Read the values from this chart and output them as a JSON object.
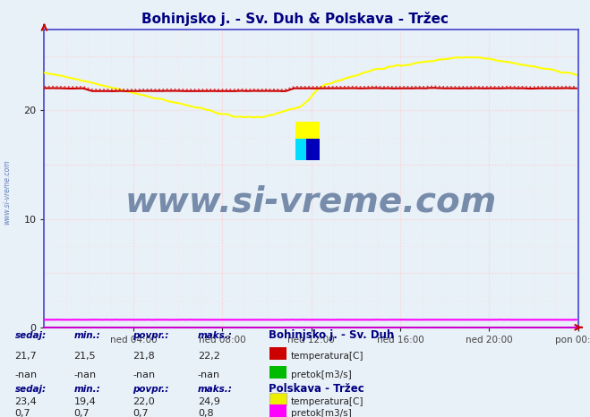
{
  "title": "Bohinjsko j. - Sv. Duh & Polskava - Tržec",
  "title_color": "#000080",
  "bg_color": "#e8f0f8",
  "plot_bg_color": "#e8f0f8",
  "grid_color": "#ffcccc",
  "grid_dotted_color": "#ffdddd",
  "spine_left_color": "#4444cc",
  "spine_bottom_color": "#cc00cc",
  "spine_right_color": "#4444cc",
  "spine_top_color": "#4444cc",
  "ylim": [
    0,
    27.5
  ],
  "yticks": [
    0,
    10,
    20
  ],
  "xtick_labels": [
    "ned 04:00",
    "ned 08:00",
    "ned 12:00",
    "ned 16:00",
    "ned 20:00",
    "pon 00:00"
  ],
  "n_points": 288,
  "line_color_bohinjsko_temp_solid": "#cc0000",
  "line_color_bohinjsko_temp_dot": "#dd0000",
  "line_color_polskava_temp": "#ffff00",
  "line_color_polskava_pretok": "#ff00ff",
  "legend_bohinjsko_title": "Bohinjsko j. - Sv. Duh",
  "legend_polskava_title": "Polskava - Tržec",
  "legend_color": "#000080",
  "stats_color": "#000080",
  "watermark_text": "www.si-vreme.com",
  "watermark_color": "#1a3a6b",
  "sidebar_text": "www.si-vreme.com",
  "sidebar_color": "#4466aa",
  "legend_temp1_color": "#cc0000",
  "legend_pretok1_color": "#00bb00",
  "legend_temp2_color": "#eeee00",
  "legend_pretok2_color": "#ff00ff",
  "stats1": {
    "sedaj": "21,7",
    "min": "21,5",
    "povpr": "21,8",
    "maks": "22,2"
  },
  "stats1b": {
    "sedaj": "-nan",
    "min": "-nan",
    "povpr": "-nan",
    "maks": "-nan"
  },
  "stats2": {
    "sedaj": "23,4",
    "min": "19,4",
    "povpr": "22,0",
    "maks": "24,9"
  },
  "stats2b": {
    "sedaj": "0,7",
    "min": "0,7",
    "povpr": "0,7",
    "maks": "0,8"
  }
}
